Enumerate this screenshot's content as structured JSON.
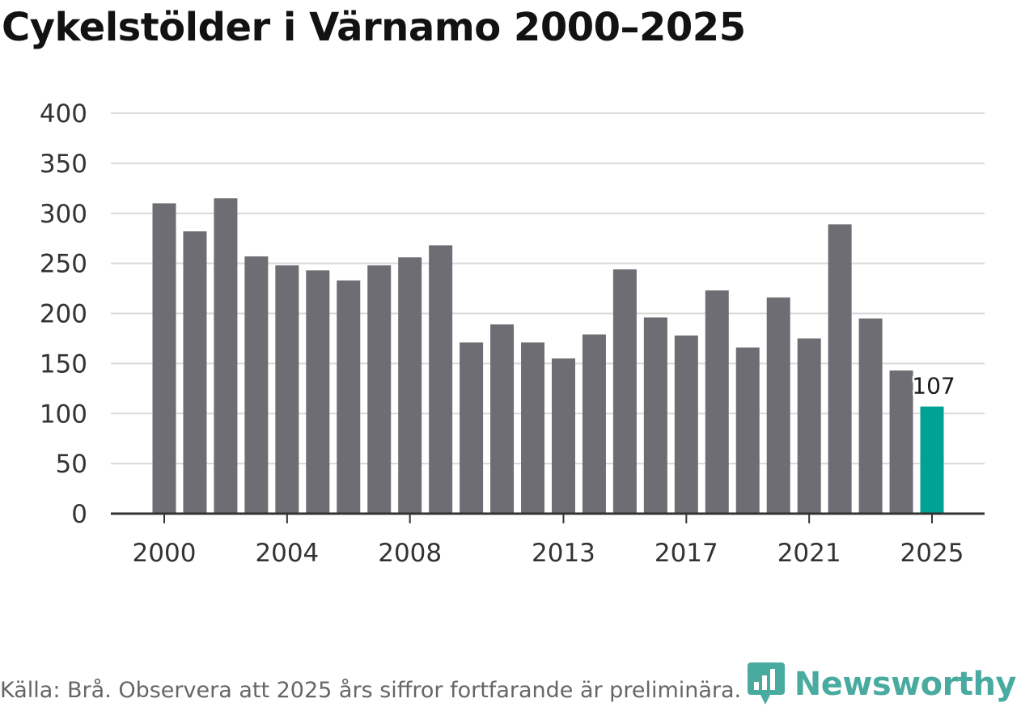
{
  "chart_data": {
    "type": "bar",
    "title": "Cykelstölder i Värnamo 2000–2025",
    "xlabel": "",
    "ylabel": "",
    "ylim": [
      0,
      400
    ],
    "yticks": [
      0,
      50,
      100,
      150,
      200,
      250,
      300,
      350,
      400
    ],
    "xtick_labels": [
      "2000",
      "2004",
      "2008",
      "2013",
      "2017",
      "2021",
      "2025"
    ],
    "categories": [
      "2000",
      "2001",
      "2002",
      "2003",
      "2004",
      "2005",
      "2006",
      "2007",
      "2008",
      "2009",
      "2010",
      "2011",
      "2012",
      "2013",
      "2014",
      "2015",
      "2016",
      "2017",
      "2018",
      "2019",
      "2020",
      "2021",
      "2022",
      "2023",
      "2024",
      "2025"
    ],
    "values": [
      310,
      282,
      315,
      257,
      248,
      243,
      233,
      248,
      256,
      268,
      171,
      189,
      171,
      155,
      179,
      244,
      196,
      178,
      223,
      166,
      216,
      175,
      289,
      195,
      143,
      107
    ],
    "highlight": {
      "category": "2025",
      "label": "107"
    },
    "grid": true,
    "colors": {
      "bar": "#6e6d73",
      "highlight": "#00a295",
      "grid": "#d9d9d9",
      "axis": "#333333"
    }
  },
  "footer": {
    "source": "Källa: Brå. Observera att 2025 års siffror fortfarande är preliminära.",
    "brand": "Newsworthy"
  },
  "colors": {
    "brand": "#2a9d8f"
  }
}
